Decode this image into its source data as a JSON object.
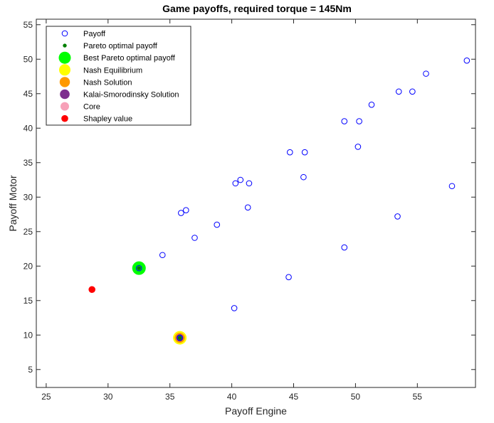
{
  "chart_data": {
    "type": "scatter",
    "title": "Game payoffs, required torque = 145Nm",
    "xlabel": "Payoff Engine",
    "ylabel": "Payoff Motor",
    "xlim": [
      24.2,
      59.7
    ],
    "ylim": [
      2.4,
      55.8
    ],
    "xticks": [
      25,
      30,
      35,
      40,
      45,
      50,
      55
    ],
    "yticks": [
      5,
      10,
      15,
      20,
      25,
      30,
      35,
      40,
      45,
      50,
      55
    ],
    "grid": false,
    "legend_position": "top-left",
    "series": [
      {
        "name": "Payoff",
        "marker": "open-circle",
        "color": "#0000ff",
        "points": [
          [
            59.0,
            49.8
          ],
          [
            55.7,
            47.9
          ],
          [
            54.6,
            45.3
          ],
          [
            53.5,
            45.3
          ],
          [
            51.3,
            43.4
          ],
          [
            49.1,
            41.0
          ],
          [
            50.3,
            41.0
          ],
          [
            50.2,
            37.3
          ],
          [
            44.7,
            36.5
          ],
          [
            45.9,
            36.5
          ],
          [
            45.8,
            32.9
          ],
          [
            40.3,
            32.0
          ],
          [
            40.7,
            32.5
          ],
          [
            41.4,
            32.0
          ],
          [
            41.3,
            28.5
          ],
          [
            35.9,
            27.7
          ],
          [
            36.3,
            28.1
          ],
          [
            38.8,
            26.0
          ],
          [
            37.0,
            24.1
          ],
          [
            34.4,
            21.6
          ],
          [
            49.1,
            22.7
          ],
          [
            44.6,
            18.4
          ],
          [
            40.2,
            13.9
          ],
          [
            53.4,
            27.2
          ],
          [
            57.8,
            31.6
          ],
          [
            32.5,
            19.7
          ],
          [
            35.8,
            9.6
          ]
        ]
      },
      {
        "name": "Pareto optimal payoff",
        "marker": "small-dot",
        "color": "#007f00",
        "points": [
          [
            32.5,
            19.7
          ],
          [
            35.8,
            9.6
          ]
        ]
      },
      {
        "name": "Best Pareto optimal payoff",
        "marker": "large-dot",
        "color": "#00ff00",
        "points": [
          [
            32.5,
            19.7
          ]
        ]
      },
      {
        "name": "Nash Equilibrium",
        "marker": "large-dot",
        "color": "#ffff00",
        "points": [
          [
            35.8,
            9.6
          ]
        ]
      },
      {
        "name": "Nash Solution",
        "marker": "dot",
        "color": "#ff9900",
        "points": [
          [
            35.8,
            9.6
          ]
        ]
      },
      {
        "name": "Kalai-Smorodinsky Solution",
        "marker": "dot",
        "color": "#7e2f8e",
        "points": [
          [
            35.8,
            9.6
          ]
        ]
      },
      {
        "name": "Core",
        "marker": "dot",
        "color": "#f7a1b8",
        "points": []
      },
      {
        "name": "Shapley value",
        "marker": "dot",
        "color": "#ff0000",
        "points": [
          [
            28.7,
            16.6
          ]
        ]
      }
    ]
  }
}
